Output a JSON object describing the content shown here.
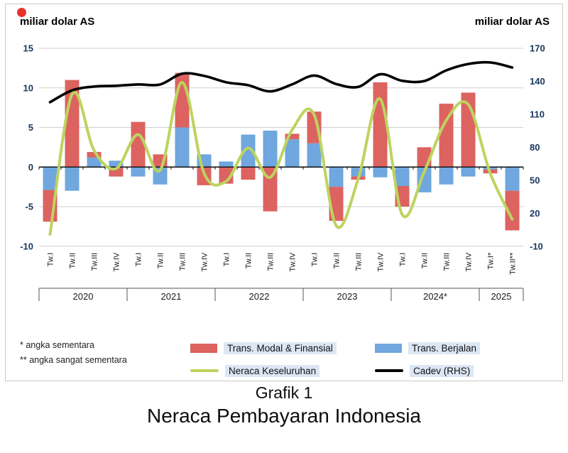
{
  "page": {
    "left_axis_title": "miliar dolar AS",
    "right_axis_title": "miliar dolar AS",
    "footnote1": "* angka sementara",
    "footnote2": "** angka sangat sementara",
    "caption_line1": "Grafik 1",
    "caption_line2": "Neraca Pembayaran Indonesia"
  },
  "legend": {
    "modal": "Trans. Modal & Finansial",
    "berjalan": "Trans. Berjalan",
    "neraca": "Neraca Keseluruhan",
    "cadev": "Cadev (RHS)"
  },
  "colors": {
    "modal": "#dc6360",
    "berjalan": "#6fa7de",
    "neraca": "#bdd45f",
    "cadev": "#000000",
    "grid": "#cfcfcf",
    "tick_text": "#17375e",
    "label_text": "#1a1a1a"
  },
  "chart_data": {
    "type": "combo-bar-line",
    "quarter_labels": [
      "Tw.I",
      "Tw.II",
      "Tw.III",
      "Tw.IV",
      "Tw.I",
      "Tw.II",
      "Tw.III",
      "Tw.IV",
      "Tw.I",
      "Tw.II",
      "Tw.III",
      "Tw.IV",
      "Tw.I",
      "Tw.II",
      "Tw.III",
      "Tw.IV",
      "Tw.I",
      "Tw.II",
      "Tw.III",
      "Tw.IV",
      "Tw.I*",
      "Tw.II**"
    ],
    "year_groups": [
      {
        "label": "2020",
        "count": 4
      },
      {
        "label": "2021",
        "count": 4
      },
      {
        "label": "2022",
        "count": 4
      },
      {
        "label": "2023",
        "count": 4
      },
      {
        "label": "2024*",
        "count": 4
      },
      {
        "label": "2025",
        "count": 2
      }
    ],
    "left_axis": {
      "min": -10,
      "max": 15,
      "ticks": [
        15,
        10,
        5,
        0,
        -5,
        -10
      ]
    },
    "right_axis": {
      "min": -10,
      "max": 170,
      "ticks": [
        170,
        140,
        110,
        80,
        50,
        20,
        -10
      ]
    },
    "series": [
      {
        "name": "Trans. Modal & Finansial",
        "type": "bar",
        "axis": "left",
        "values": [
          -4.0,
          11.0,
          0.7,
          -1.2,
          5.7,
          1.6,
          6.9,
          -2.3,
          -2.1,
          -1.6,
          -5.6,
          0.7,
          4.0,
          -4.3,
          -0.4,
          10.7,
          -2.6,
          2.5,
          8.0,
          9.4,
          -0.5,
          -5.0
        ]
      },
      {
        "name": "Trans. Berjalan",
        "type": "bar",
        "axis": "left",
        "values": [
          -2.9,
          -3.0,
          1.2,
          0.8,
          -1.2,
          -2.2,
          5.0,
          1.6,
          0.7,
          4.1,
          4.6,
          3.5,
          3.0,
          -2.5,
          -1.2,
          -1.3,
          -2.4,
          -3.2,
          -2.2,
          -1.2,
          -0.3,
          -3.0
        ]
      },
      {
        "name": "Neraca Keseluruhan",
        "type": "line",
        "axis": "left",
        "values": [
          -8.5,
          9.2,
          2.1,
          -0.2,
          4.1,
          -0.4,
          10.7,
          -0.8,
          -1.8,
          2.4,
          -1.3,
          4.7,
          6.6,
          -7.4,
          -1.5,
          8.6,
          -6.0,
          -0.6,
          5.9,
          7.9,
          -0.8,
          -6.6
        ]
      },
      {
        "name": "Cadev (RHS)",
        "type": "line",
        "axis": "right",
        "values": [
          121.0,
          131.7,
          135.2,
          135.9,
          137.1,
          137.1,
          146.9,
          144.9,
          139.1,
          136.4,
          130.8,
          137.2,
          145.2,
          137.5,
          134.9,
          146.4,
          140.4,
          140.2,
          149.9,
          155.7,
          157.1,
          152.5
        ]
      }
    ]
  }
}
